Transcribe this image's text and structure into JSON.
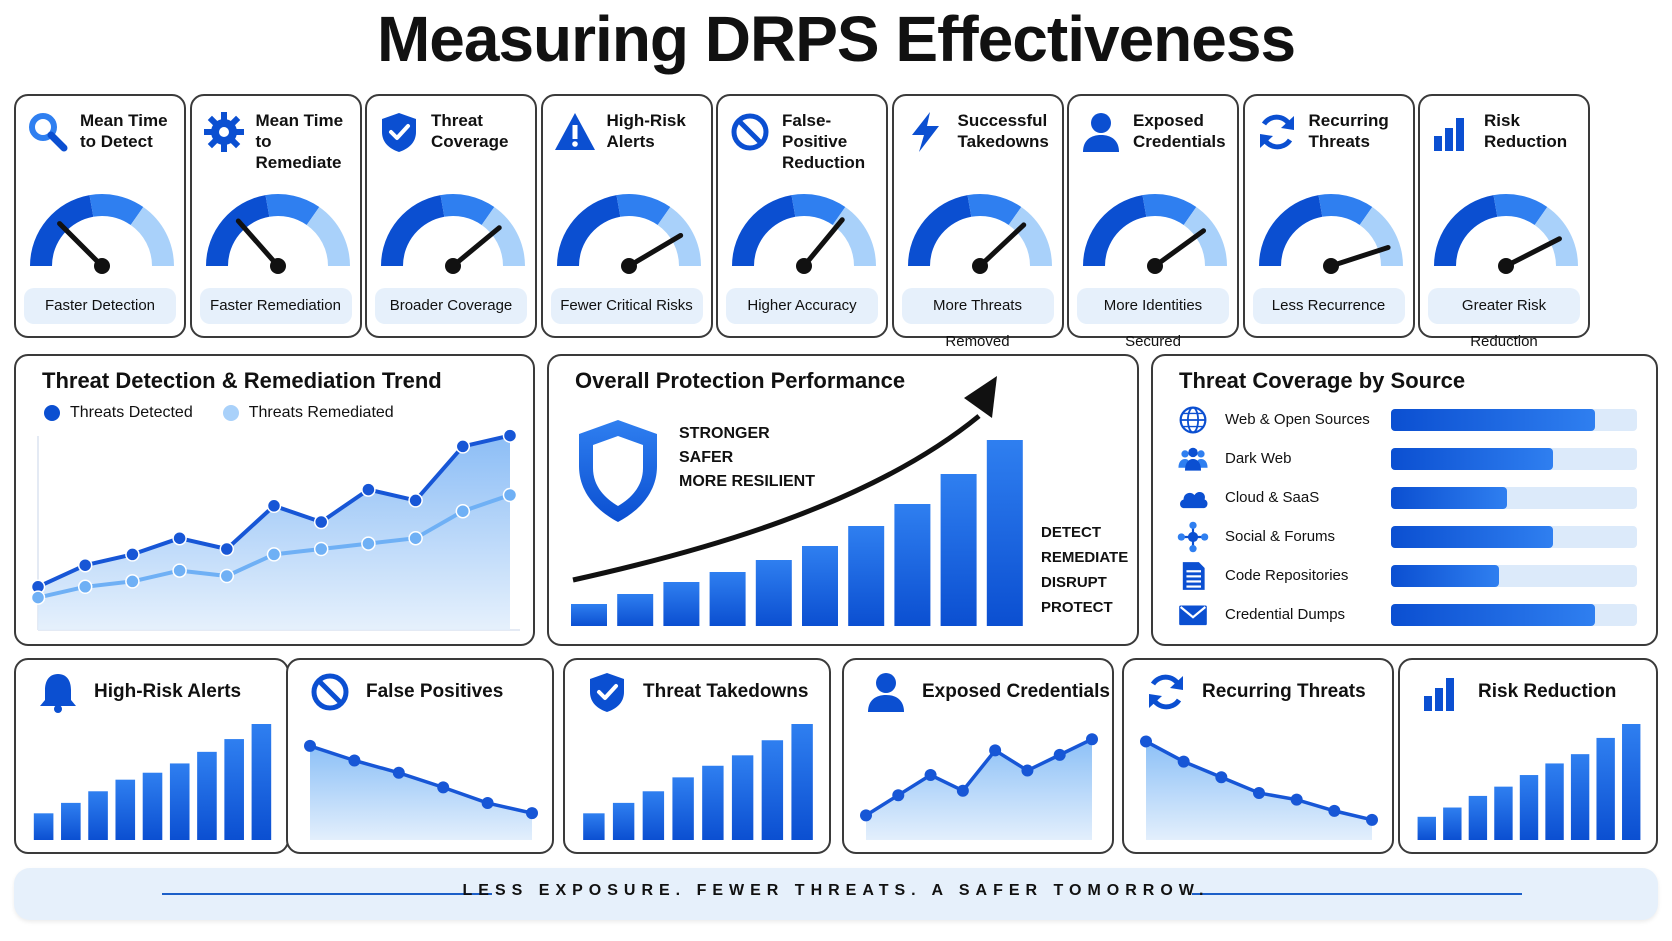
{
  "title": "Measuring DRPS Effectiveness",
  "colors": {
    "primary": "#0b4fd1",
    "mid": "#2f7ff0",
    "light": "#a9d1fa",
    "pill": "#e6f0fb",
    "needle": "#111111"
  },
  "kpis": [
    {
      "icon": "search-icon",
      "title_line1": "Mean Time",
      "title_line2": "to Detect",
      "level": 0.25,
      "caption": "Faster Detection"
    },
    {
      "icon": "gear-icon",
      "title_line1": "Mean Time",
      "title_line2": "to Remediate",
      "level": 0.27,
      "caption": "Faster Remediation"
    },
    {
      "icon": "shield-check-icon",
      "title_line1": "Threat",
      "title_line2": "Coverage",
      "level": 0.78,
      "caption": "Broader Coverage"
    },
    {
      "icon": "warning-icon",
      "title_line1": "High-Risk",
      "title_line2": "Alerts",
      "level": 0.83,
      "caption": "Fewer Critical Risks"
    },
    {
      "icon": "ban-icon",
      "title_line1": "False-Positive",
      "title_line2": "Reduction",
      "level": 0.72,
      "caption": "Higher Accuracy"
    },
    {
      "icon": "lightning-icon",
      "title_line1": "Successful",
      "title_line2": "Takedowns",
      "level": 0.76,
      "caption": "More Threats Removed"
    },
    {
      "icon": "user-icon",
      "title_line1": "Exposed",
      "title_line2": "Credentials",
      "level": 0.8,
      "caption": "More Identities Secured"
    },
    {
      "icon": "refresh-icon",
      "title_line1": "Recurring",
      "title_line2": "Threats",
      "level": 0.9,
      "caption": "Less Recurrence"
    },
    {
      "icon": "bar-chart-icon",
      "title_line1": "Risk",
      "title_line2": "Reduction",
      "level": 0.85,
      "caption": "Greater Risk Reduction"
    }
  ],
  "trend": {
    "title": "Threat Detection & Remediation Trend",
    "legend": [
      "Threats Detected",
      "Threats Remediated"
    ]
  },
  "performance": {
    "title": "Overall Protection Performance",
    "tagline": [
      "STRONGER",
      "SAFER",
      "MORE RESILIENT"
    ],
    "steps": [
      "DETECT",
      "REMEDIATE",
      "DISRUPT",
      "PROTECT"
    ]
  },
  "coverage": {
    "title": "Threat Coverage by Source",
    "sources": [
      {
        "icon": "globe-icon",
        "label": "Web & Open Sources",
        "value": 0.83
      },
      {
        "icon": "group-icon",
        "label": "Dark Web",
        "value": 0.66
      },
      {
        "icon": "cloud-icon",
        "label": "Cloud & SaaS",
        "value": 0.47
      },
      {
        "icon": "network-icon",
        "label": "Social & Forums",
        "value": 0.66
      },
      {
        "icon": "document-icon",
        "label": "Code Repositories",
        "value": 0.44
      },
      {
        "icon": "envelope-icon",
        "label": "Credential Dumps",
        "value": 0.83
      }
    ]
  },
  "minis": [
    {
      "icon": "bell-icon",
      "title": "High-Risk Alerts",
      "type": "bar"
    },
    {
      "icon": "ban-icon",
      "title": "False Positives",
      "type": "line-down"
    },
    {
      "icon": "shield-check-icon",
      "title": "Threat Takedowns",
      "type": "bar"
    },
    {
      "icon": "user-icon",
      "title": "Exposed Credentials",
      "type": "line-up"
    },
    {
      "icon": "refresh-icon",
      "title": "Recurring Threats",
      "type": "line-down"
    },
    {
      "icon": "bar-chart-icon",
      "title": "Risk Reduction",
      "type": "bar"
    }
  ],
  "footer": "LESS EXPOSURE. FEWER THREATS. A SAFER TOMORROW.",
  "chart_data": [
    {
      "type": "line",
      "title": "Threat Detection & Remediation Trend",
      "x": [
        1,
        2,
        3,
        4,
        5,
        6,
        7,
        8,
        9,
        10,
        11
      ],
      "series": [
        {
          "name": "Threats Detected",
          "values": [
            8,
            12,
            14,
            17,
            15,
            23,
            20,
            26,
            24,
            34,
            36
          ]
        },
        {
          "name": "Threats Remediated",
          "values": [
            6,
            8,
            9,
            11,
            10,
            14,
            15,
            16,
            17,
            22,
            25
          ]
        }
      ],
      "ylim": [
        0,
        40
      ],
      "legend": "top-left"
    },
    {
      "type": "bar",
      "title": "Overall Protection Performance",
      "values": [
        11,
        16,
        22,
        27,
        33,
        40,
        50,
        61,
        76,
        93
      ]
    },
    {
      "type": "bar",
      "title": "Threat Coverage by Source",
      "categories": [
        "Web & Open Sources",
        "Dark Web",
        "Cloud & SaaS",
        "Social & Forums",
        "Code Repositories",
        "Credential Dumps"
      ],
      "values": [
        0.83,
        0.66,
        0.47,
        0.66,
        0.44,
        0.83
      ]
    },
    {
      "type": "bar",
      "title": "High-Risk Alerts",
      "values": [
        23,
        32,
        42,
        52,
        58,
        66,
        76,
        87,
        100
      ]
    },
    {
      "type": "area",
      "title": "False Positives",
      "values": [
        84,
        71,
        60,
        47,
        33,
        24
      ]
    },
    {
      "type": "bar",
      "title": "Threat Takedowns",
      "values": [
        23,
        32,
        42,
        54,
        64,
        73,
        86,
        100
      ]
    },
    {
      "type": "area",
      "title": "Exposed Credentials",
      "values": [
        22,
        40,
        58,
        44,
        80,
        62,
        76,
        90
      ]
    },
    {
      "type": "area",
      "title": "Recurring Threats",
      "values": [
        88,
        70,
        56,
        42,
        36,
        26,
        18
      ]
    },
    {
      "type": "bar",
      "title": "Risk Reduction",
      "values": [
        20,
        28,
        38,
        46,
        56,
        66,
        74,
        88,
        100
      ]
    }
  ]
}
